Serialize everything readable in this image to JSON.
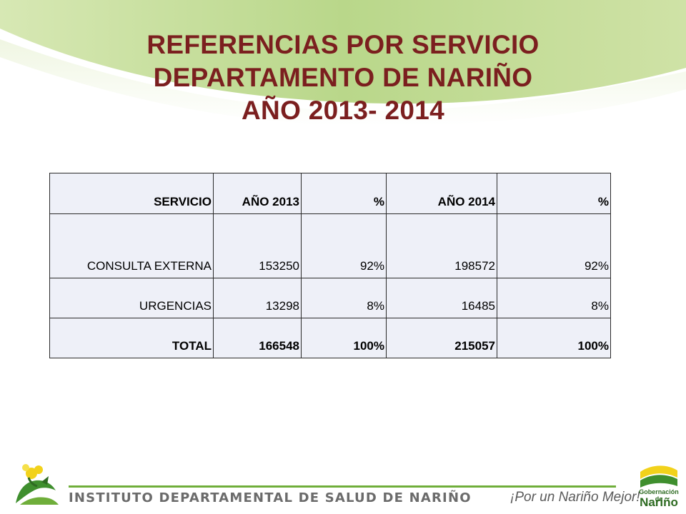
{
  "title": {
    "line1": "REFERENCIAS POR SERVICIO",
    "line2": "DEPARTAMENTO DE NARIÑO",
    "line3": "AÑO 2013- 2014"
  },
  "table": {
    "headers": [
      "SERVICIO",
      "AÑO  2013",
      "%",
      "AÑO 2014",
      "%"
    ],
    "rows": [
      [
        "CONSULTA EXTERNA",
        "153250",
        "92%",
        "198572",
        "92%"
      ],
      [
        "URGENCIAS",
        "13298",
        "8%",
        "16485",
        "8%"
      ]
    ],
    "total": [
      "TOTAL",
      "166548",
      "100%",
      "215057",
      "100%"
    ]
  },
  "footer": {
    "institute": "INSTITUTO DEPARTAMENTAL DE SALUD DE NARIÑO",
    "slogan": "¡Por un Nariño Mejor!",
    "logo_right_line1": "Gobernación de",
    "logo_right_line2": "Nariño"
  },
  "colors": {
    "title": "#7b1f1f",
    "accent_green": "#6fae3a",
    "table_bg": "#eef0f8"
  }
}
